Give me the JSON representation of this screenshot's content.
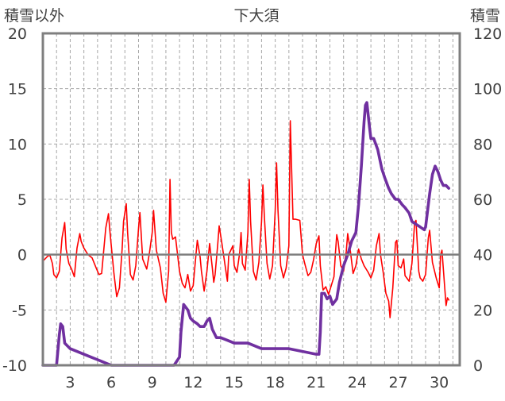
{
  "chart_data": {
    "type": "line",
    "title": "下大須",
    "y_left_label": "積雪以外",
    "y_right_label": "積雪",
    "x_range": [
      1,
      31.5
    ],
    "x_tick_labels": [
      "3",
      "6",
      "9",
      "12",
      "15",
      "18",
      "21",
      "24",
      "27",
      "30"
    ],
    "y_left_range": [
      -10,
      20
    ],
    "y_left_ticks": [
      "20",
      "15",
      "10",
      "5",
      "0",
      "-5",
      "-10"
    ],
    "y_right_range": [
      0,
      120
    ],
    "y_right_ticks": [
      "120",
      "100",
      "80",
      "60",
      "40",
      "20",
      "0"
    ],
    "grid": true,
    "legend": "none",
    "colors": {
      "series_left": "#ff0000",
      "series_right": "#7030a0",
      "zero_line": "#7f7f7f",
      "frame": "#7f7f7f",
      "grid": "#a6a6a6"
    },
    "series": [
      {
        "axis": "left",
        "points": [
          [
            1.0,
            -0.6
          ],
          [
            1.3,
            -0.2
          ],
          [
            1.5,
            0.0
          ],
          [
            1.7,
            -0.8
          ],
          [
            1.8,
            -1.8
          ],
          [
            2.0,
            -2.1
          ],
          [
            2.2,
            -1.5
          ],
          [
            2.4,
            1.5
          ],
          [
            2.6,
            2.9
          ],
          [
            2.7,
            0.5
          ],
          [
            2.9,
            -0.8
          ],
          [
            3.1,
            -1.3
          ],
          [
            3.3,
            -2.0
          ],
          [
            3.5,
            0.6
          ],
          [
            3.7,
            1.9
          ],
          [
            3.8,
            1.2
          ],
          [
            4.0,
            0.6
          ],
          [
            4.3,
            0.0
          ],
          [
            4.6,
            -0.3
          ],
          [
            4.9,
            -1.2
          ],
          [
            5.1,
            -1.8
          ],
          [
            5.3,
            -1.7
          ],
          [
            5.6,
            2.4
          ],
          [
            5.8,
            3.7
          ],
          [
            5.9,
            2.2
          ],
          [
            6.2,
            -1.7
          ],
          [
            6.4,
            -3.8
          ],
          [
            6.6,
            -3.0
          ],
          [
            6.8,
            0.5
          ],
          [
            6.9,
            3.0
          ],
          [
            7.1,
            4.6
          ],
          [
            7.2,
            2.0
          ],
          [
            7.4,
            -1.8
          ],
          [
            7.6,
            -2.3
          ],
          [
            7.8,
            -1.0
          ],
          [
            8.0,
            2.4
          ],
          [
            8.1,
            3.8
          ],
          [
            8.3,
            -0.4
          ],
          [
            8.6,
            -1.3
          ],
          [
            8.8,
            0.2
          ],
          [
            9.0,
            2.0
          ],
          [
            9.1,
            4.0
          ],
          [
            9.3,
            0.4
          ],
          [
            9.6,
            -1.2
          ],
          [
            9.8,
            -3.5
          ],
          [
            10.0,
            -4.3
          ],
          [
            10.2,
            -1.5
          ],
          [
            10.3,
            6.8
          ],
          [
            10.4,
            2.0
          ],
          [
            10.5,
            1.4
          ],
          [
            10.7,
            1.6
          ],
          [
            11.0,
            -1.5
          ],
          [
            11.2,
            -2.6
          ],
          [
            11.4,
            -3.0
          ],
          [
            11.6,
            -1.8
          ],
          [
            11.8,
            -3.3
          ],
          [
            12.0,
            -2.8
          ],
          [
            12.2,
            0.0
          ],
          [
            12.3,
            1.3
          ],
          [
            12.5,
            -0.2
          ],
          [
            12.6,
            -1.5
          ],
          [
            12.8,
            -3.3
          ],
          [
            13.0,
            -1.5
          ],
          [
            13.2,
            1.0
          ],
          [
            13.4,
            -1.2
          ],
          [
            13.5,
            -2.5
          ],
          [
            13.6,
            -1.8
          ],
          [
            13.8,
            1.0
          ],
          [
            13.9,
            2.6
          ],
          [
            14.1,
            1.0
          ],
          [
            14.3,
            -0.7
          ],
          [
            14.5,
            -2.4
          ],
          [
            14.6,
            0.0
          ],
          [
            14.9,
            0.8
          ],
          [
            15.0,
            -1.0
          ],
          [
            15.2,
            -1.6
          ],
          [
            15.4,
            0.2
          ],
          [
            15.5,
            2.0
          ],
          [
            15.6,
            -0.8
          ],
          [
            15.8,
            -1.4
          ],
          [
            16.0,
            2.0
          ],
          [
            16.1,
            6.8
          ],
          [
            16.2,
            3.0
          ],
          [
            16.4,
            -1.5
          ],
          [
            16.6,
            -2.3
          ],
          [
            16.8,
            -0.7
          ],
          [
            17.0,
            3.0
          ],
          [
            17.1,
            6.3
          ],
          [
            17.2,
            3.5
          ],
          [
            17.4,
            -0.8
          ],
          [
            17.6,
            -2.2
          ],
          [
            17.8,
            -1.0
          ],
          [
            18.0,
            4.0
          ],
          [
            18.1,
            8.3
          ],
          [
            18.2,
            4.0
          ],
          [
            18.4,
            -1.0
          ],
          [
            18.6,
            -2.1
          ],
          [
            18.8,
            -1.2
          ],
          [
            19.0,
            0.8
          ],
          [
            19.1,
            12.1
          ],
          [
            19.3,
            3.2
          ],
          [
            19.5,
            3.2
          ],
          [
            19.8,
            3.1
          ],
          [
            20.0,
            0.0
          ],
          [
            20.2,
            -1.0
          ],
          [
            20.4,
            -1.9
          ],
          [
            20.6,
            -1.6
          ],
          [
            20.8,
            -0.5
          ],
          [
            21.0,
            1.0
          ],
          [
            21.2,
            1.7
          ],
          [
            21.3,
            -1.0
          ],
          [
            21.5,
            -3.2
          ],
          [
            21.7,
            -2.9
          ],
          [
            21.9,
            -3.6
          ],
          [
            22.1,
            -2.8
          ],
          [
            22.3,
            -2.0
          ],
          [
            22.4,
            0.1
          ],
          [
            22.5,
            1.8
          ],
          [
            22.6,
            1.2
          ],
          [
            22.8,
            -1.0
          ],
          [
            23.0,
            -1.5
          ],
          [
            23.2,
            0.3
          ],
          [
            23.3,
            1.9
          ],
          [
            23.5,
            0.3
          ],
          [
            23.7,
            -1.7
          ],
          [
            23.9,
            -1.0
          ],
          [
            24.1,
            0.5
          ],
          [
            24.3,
            -0.4
          ],
          [
            24.5,
            -1.0
          ],
          [
            24.8,
            -1.6
          ],
          [
            25.0,
            -2.1
          ],
          [
            25.2,
            -1.4
          ],
          [
            25.4,
            0.8
          ],
          [
            25.6,
            1.9
          ],
          [
            25.7,
            0.0
          ],
          [
            25.9,
            -1.6
          ],
          [
            26.1,
            -3.5
          ],
          [
            26.3,
            -4.2
          ],
          [
            26.4,
            -5.7
          ],
          [
            26.6,
            -3.0
          ],
          [
            26.8,
            1.1
          ],
          [
            26.9,
            1.3
          ],
          [
            27.0,
            -1.0
          ],
          [
            27.2,
            -1.2
          ],
          [
            27.4,
            -0.4
          ],
          [
            27.5,
            -1.9
          ],
          [
            27.8,
            -2.4
          ],
          [
            28.0,
            -0.8
          ],
          [
            28.2,
            2.9
          ],
          [
            28.3,
            3.1
          ],
          [
            28.5,
            -1.5
          ],
          [
            28.6,
            -2.1
          ],
          [
            28.8,
            -2.4
          ],
          [
            29.0,
            -1.8
          ],
          [
            29.2,
            1.5
          ],
          [
            29.3,
            2.2
          ],
          [
            29.5,
            -0.7
          ],
          [
            29.8,
            -2.2
          ],
          [
            30.0,
            -3.0
          ],
          [
            30.1,
            0.0
          ],
          [
            30.2,
            0.4
          ],
          [
            30.4,
            -3.0
          ],
          [
            30.5,
            -4.6
          ],
          [
            30.6,
            -3.9
          ],
          [
            30.7,
            -4.1
          ]
        ]
      },
      {
        "axis": "right",
        "points": [
          [
            1.0,
            0
          ],
          [
            2.0,
            0
          ],
          [
            2.2,
            11
          ],
          [
            2.3,
            15
          ],
          [
            2.45,
            14
          ],
          [
            2.6,
            8
          ],
          [
            3.0,
            6
          ],
          [
            3.5,
            5
          ],
          [
            4.0,
            4
          ],
          [
            4.5,
            3
          ],
          [
            5.0,
            2
          ],
          [
            5.5,
            1
          ],
          [
            6.0,
            0
          ],
          [
            10.6,
            0
          ],
          [
            11.0,
            3
          ],
          [
            11.1,
            12
          ],
          [
            11.3,
            22
          ],
          [
            11.6,
            20
          ],
          [
            11.8,
            17
          ],
          [
            12.0,
            16
          ],
          [
            12.3,
            15
          ],
          [
            12.5,
            14
          ],
          [
            12.8,
            14
          ],
          [
            13.0,
            16
          ],
          [
            13.2,
            17
          ],
          [
            13.4,
            13
          ],
          [
            13.7,
            10
          ],
          [
            14.0,
            10
          ],
          [
            14.5,
            9
          ],
          [
            15.0,
            8
          ],
          [
            15.5,
            8
          ],
          [
            16.0,
            8
          ],
          [
            16.5,
            7
          ],
          [
            17.0,
            6
          ],
          [
            18.0,
            6
          ],
          [
            19.0,
            6
          ],
          [
            20.0,
            5
          ],
          [
            21.0,
            4
          ],
          [
            21.2,
            4
          ],
          [
            21.3,
            12
          ],
          [
            21.4,
            26
          ],
          [
            21.6,
            26
          ],
          [
            21.8,
            24
          ],
          [
            22.0,
            25
          ],
          [
            22.2,
            22
          ],
          [
            22.5,
            24
          ],
          [
            22.7,
            30
          ],
          [
            23.0,
            36
          ],
          [
            23.3,
            40
          ],
          [
            23.6,
            45
          ],
          [
            23.9,
            48
          ],
          [
            24.1,
            58
          ],
          [
            24.3,
            72
          ],
          [
            24.5,
            88
          ],
          [
            24.6,
            94
          ],
          [
            24.7,
            95
          ],
          [
            24.9,
            86
          ],
          [
            25.0,
            82
          ],
          [
            25.2,
            82
          ],
          [
            25.5,
            78
          ],
          [
            25.8,
            71
          ],
          [
            26.0,
            68
          ],
          [
            26.3,
            64
          ],
          [
            26.5,
            62
          ],
          [
            26.8,
            60
          ],
          [
            27.0,
            60
          ],
          [
            27.3,
            58
          ],
          [
            27.5,
            57
          ],
          [
            27.8,
            55
          ],
          [
            28.0,
            52
          ],
          [
            28.3,
            51
          ],
          [
            28.6,
            50
          ],
          [
            28.9,
            49
          ],
          [
            29.0,
            50
          ],
          [
            29.1,
            54
          ],
          [
            29.3,
            62
          ],
          [
            29.5,
            69
          ],
          [
            29.7,
            72
          ],
          [
            29.9,
            70
          ],
          [
            30.1,
            67
          ],
          [
            30.3,
            65
          ],
          [
            30.5,
            65
          ],
          [
            30.7,
            64
          ]
        ]
      }
    ]
  }
}
